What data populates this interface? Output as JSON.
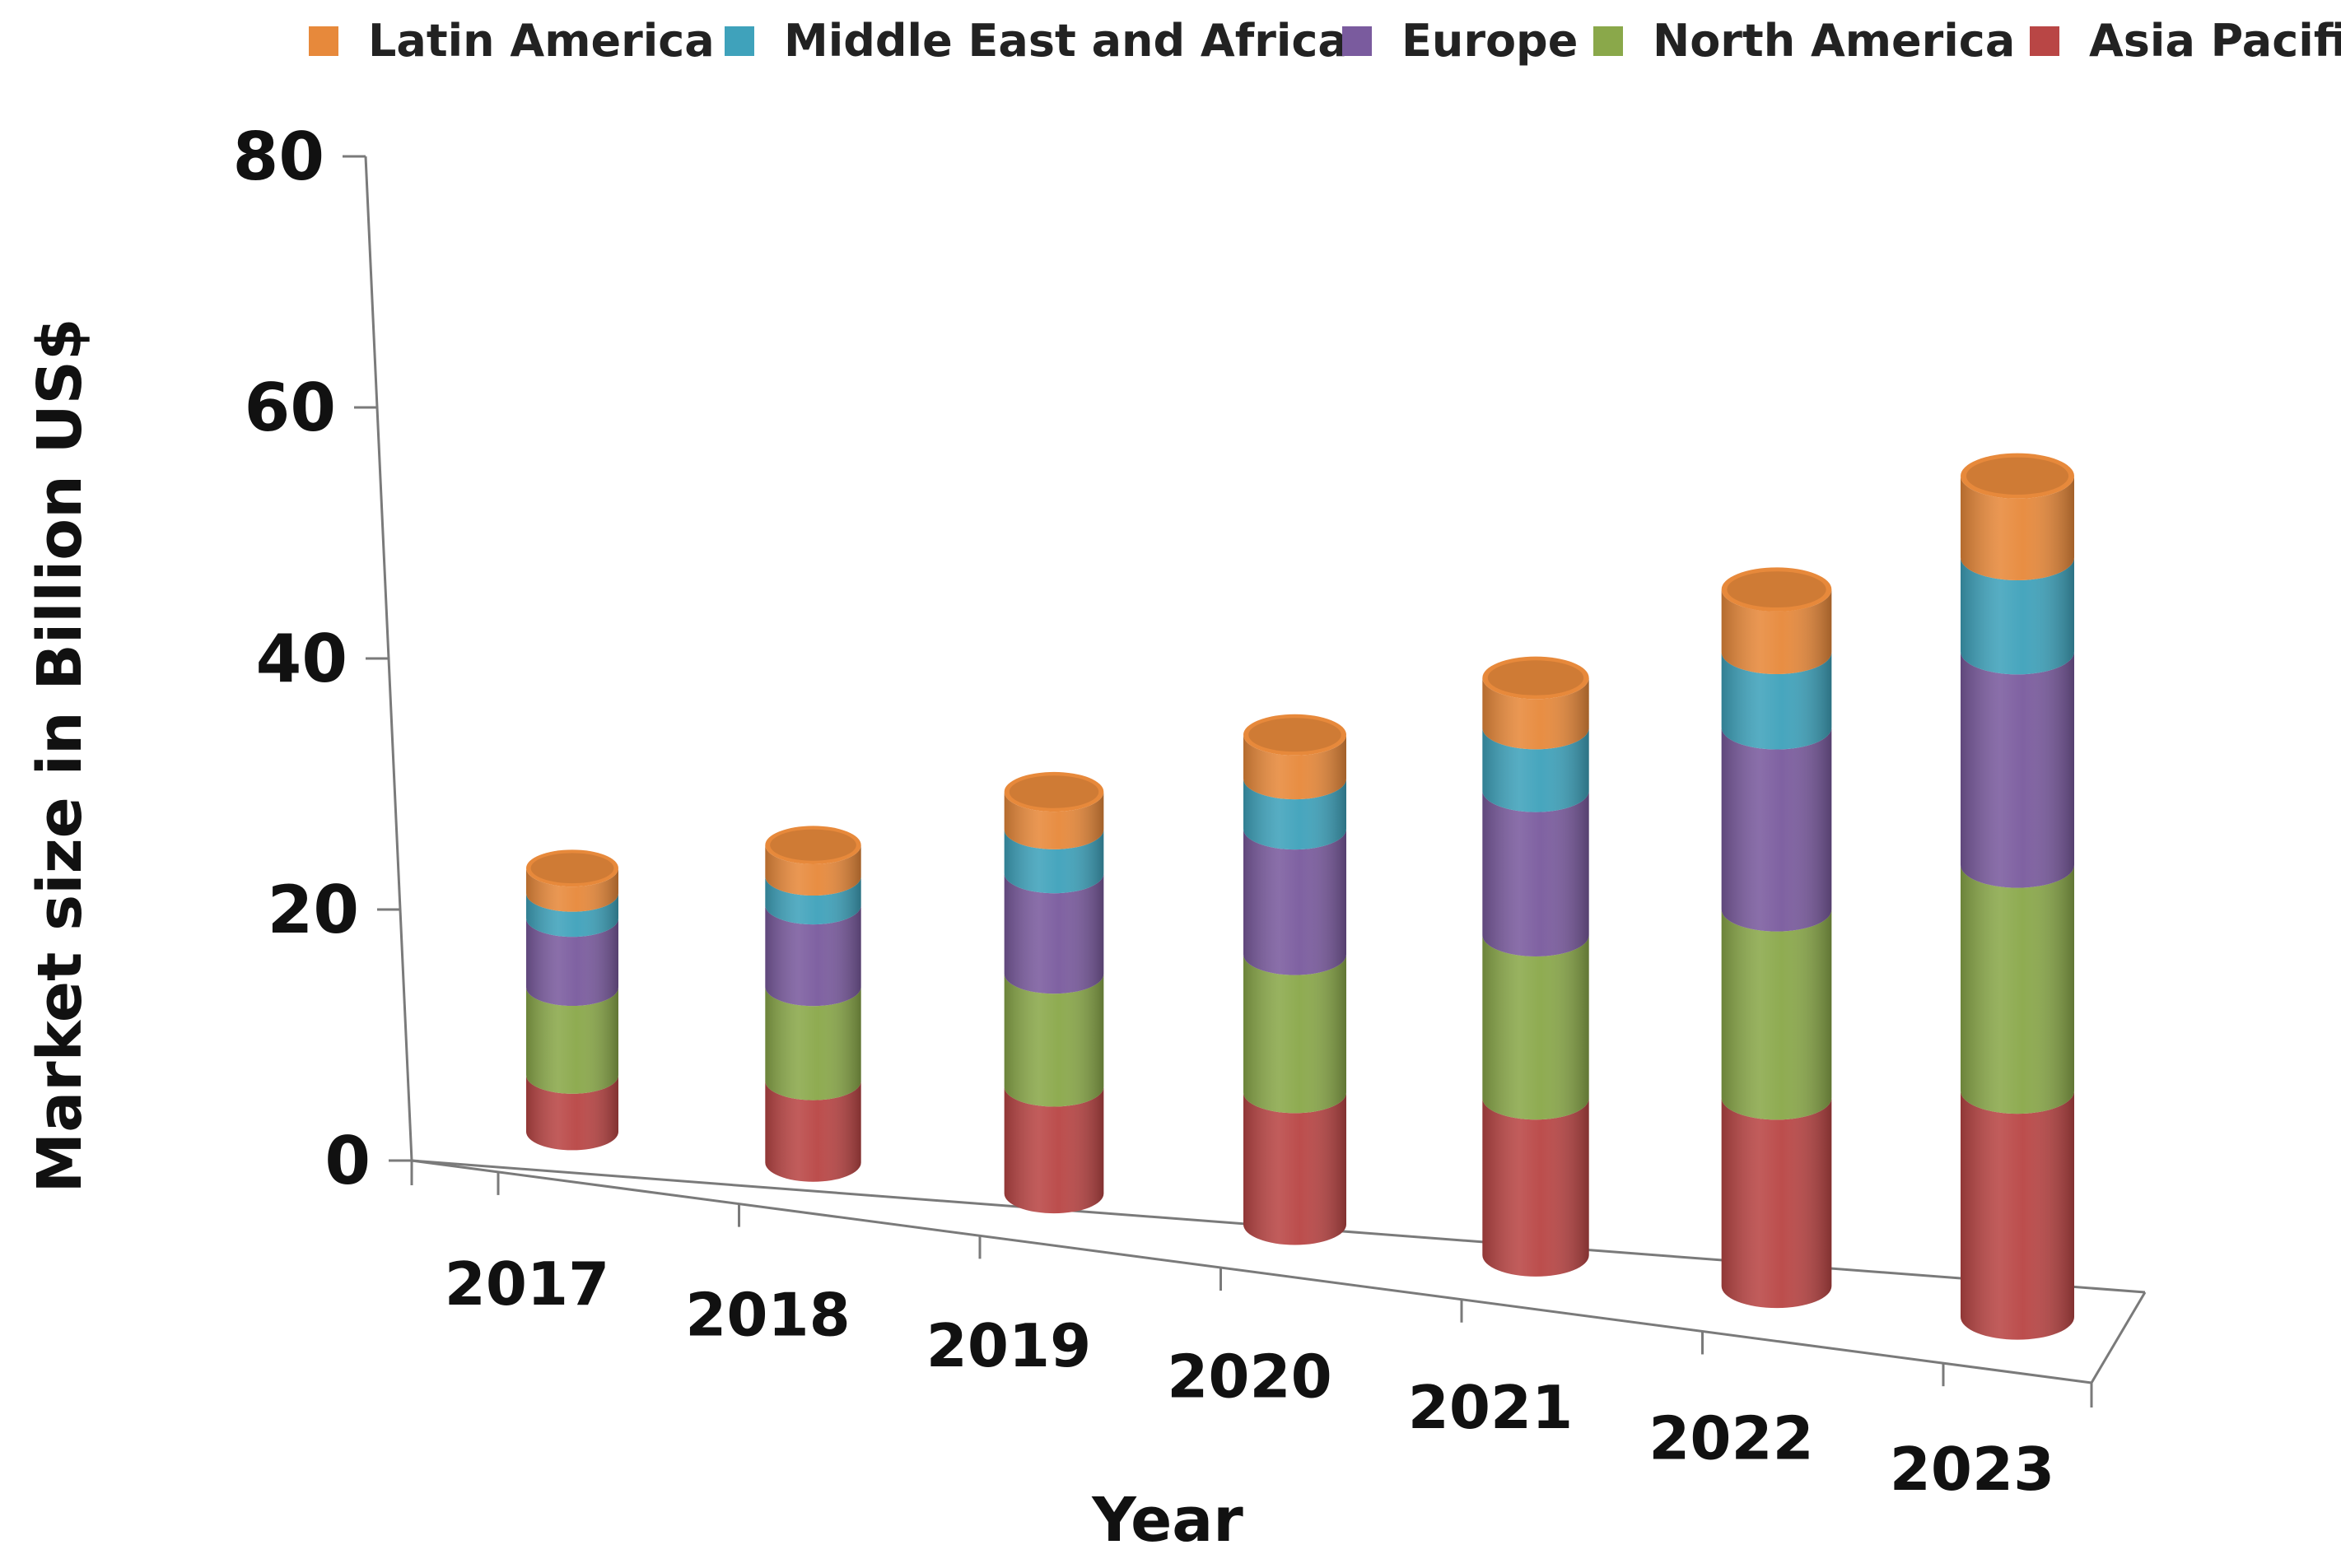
{
  "chart_data": {
    "type": "bar",
    "subtype": "stacked-3d-cylinder",
    "title": "",
    "xlabel": "Year",
    "ylabel": "Market size in Billion US$",
    "ylim": [
      0,
      80
    ],
    "yticks": [
      "0",
      "20",
      "40",
      "60",
      "80"
    ],
    "categories": [
      "2017",
      "2018",
      "2019",
      "2020",
      "2021",
      "2022",
      "2023"
    ],
    "series": [
      {
        "name": "Asia Pacific",
        "color": "#b94645",
        "values": [
          4.5,
          6.5,
          8.5,
          10.5,
          12.5,
          15.0,
          18.0
        ]
      },
      {
        "name": "North America",
        "color": "#8aa84a",
        "values": [
          7.0,
          7.5,
          9.0,
          11.0,
          13.0,
          15.0,
          18.0
        ]
      },
      {
        "name": "Europe",
        "color": "#7a5b9e",
        "values": [
          5.5,
          6.5,
          8.0,
          10.0,
          11.5,
          14.5,
          17.0
        ]
      },
      {
        "name": "Middle East and Africa",
        "color": "#3fa2bb",
        "values": [
          2.0,
          2.3,
          3.5,
          4.0,
          5.0,
          6.0,
          7.5
        ]
      },
      {
        "name": "Latin America",
        "color": "#e7893b",
        "values": [
          2.0,
          2.5,
          3.0,
          3.5,
          4.0,
          5.0,
          6.5
        ]
      }
    ],
    "legend": {
      "placement": "top",
      "order": [
        "Latin America",
        "Middle East and Africa",
        "Europe",
        "North America",
        "Asia Pacific"
      ]
    },
    "grid": false
  }
}
